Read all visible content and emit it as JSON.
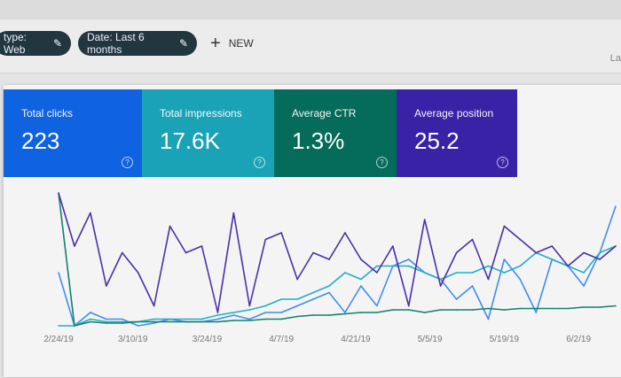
{
  "filters": {
    "chips": [
      {
        "label": "type: Web",
        "icon": "pencil-icon"
      },
      {
        "label": "Date: Last 6 months",
        "icon": "pencil-icon"
      }
    ],
    "new_label": "NEW",
    "truncated_right_label": "La"
  },
  "cards": [
    {
      "label": "Total clicks",
      "value": "223",
      "color": "#0f62e0"
    },
    {
      "label": "Total impressions",
      "value": "17.6K",
      "color": "#1aa2b6"
    },
    {
      "label": "Average CTR",
      "value": "1.3%",
      "color": "#056b5a"
    },
    {
      "label": "Average position",
      "value": "25.2",
      "color": "#3a22a6"
    }
  ],
  "help_glyph": "?",
  "chart_data": {
    "type": "line",
    "x": [
      "2/24",
      "2/27",
      "3/2",
      "3/5",
      "3/8",
      "3/11",
      "3/14",
      "3/17",
      "3/20",
      "3/23",
      "3/26",
      "3/29",
      "4/1",
      "4/4",
      "4/7",
      "4/10",
      "4/13",
      "4/16",
      "4/19",
      "4/22",
      "4/25",
      "4/28",
      "5/1",
      "5/4",
      "5/7",
      "5/10",
      "5/13",
      "5/16",
      "5/19",
      "5/22",
      "5/25",
      "5/28",
      "5/31",
      "6/3",
      "6/6",
      "6/9"
    ],
    "tick_labels": [
      "2/24/19",
      "3/10/19",
      "3/24/19",
      "4/7/19",
      "4/21/19",
      "5/5/19",
      "5/19/19",
      "6/2/19"
    ],
    "tick_days": [
      0,
      14,
      28,
      42,
      56,
      70,
      84,
      98
    ],
    "x_step_days": 3,
    "y_axis_shown": false,
    "grid": false,
    "series": [
      {
        "metric": "clicks",
        "color": "#3f8ef0",
        "values": [
          40,
          0,
          10,
          5,
          5,
          0,
          2,
          5,
          3,
          3,
          5,
          8,
          5,
          10,
          10,
          15,
          20,
          25,
          10,
          30,
          15,
          45,
          50,
          40,
          35,
          20,
          30,
          5,
          50,
          35,
          10,
          50,
          45,
          30,
          55,
          90
        ]
      },
      {
        "metric": "impressions",
        "color": "#1fb0c4",
        "values": [
          0,
          0,
          5,
          3,
          3,
          3,
          5,
          5,
          5,
          5,
          8,
          10,
          12,
          15,
          20,
          20,
          25,
          30,
          40,
          35,
          45,
          45,
          45,
          40,
          35,
          40,
          40,
          45,
          40,
          45,
          55,
          50,
          45,
          40,
          55,
          60
        ]
      },
      {
        "metric": "ctr",
        "color": "#12806c",
        "values": [
          100,
          0,
          3,
          2,
          2,
          3,
          3,
          3,
          3,
          3,
          3,
          4,
          4,
          5,
          5,
          7,
          8,
          8,
          9,
          10,
          10,
          12,
          12,
          10,
          12,
          12,
          12,
          13,
          12,
          13,
          13,
          13,
          13,
          14,
          14,
          15
        ]
      },
      {
        "metric": "position",
        "color": "#4b2fa8",
        "values": [
          100,
          60,
          85,
          30,
          55,
          40,
          15,
          75,
          55,
          60,
          10,
          85,
          15,
          65,
          70,
          35,
          55,
          50,
          70,
          50,
          40,
          60,
          15,
          80,
          30,
          55,
          65,
          35,
          75,
          65,
          55,
          60,
          45,
          55,
          50,
          60
        ]
      }
    ]
  }
}
